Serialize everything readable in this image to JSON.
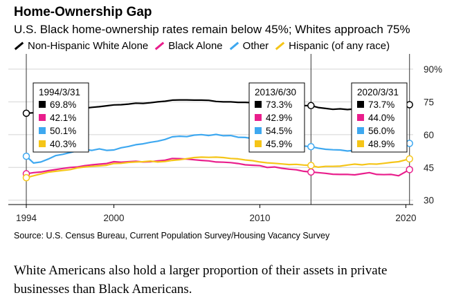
{
  "header": {
    "title": "Home-Ownership Gap",
    "subtitle": "U.S. Black home-ownership rates remain below 45%; Whites approach 75%"
  },
  "source": "Source: U.S. Census Bureau, Current Population Survey/Housing Vacancy Survey",
  "caption": "White Americans also hold a larger proportion of their assets in private businesses than Black Americans.",
  "chart_data": {
    "type": "line",
    "title": "Home-Ownership Gap",
    "subtitle": "U.S. Black home-ownership rates remain below 45%; Whites approach 75%",
    "x_range": [
      1994.0,
      2020.5
    ],
    "y_range": [
      28,
      90
    ],
    "y_ticks": [
      30,
      45,
      60,
      75,
      90
    ],
    "y_tick_labels": [
      "30",
      "45",
      "60",
      "75",
      "90%"
    ],
    "x_ticks": [
      1994,
      2000,
      2010,
      2020
    ],
    "x_tick_labels": [
      "1994",
      "2000",
      "2010",
      "2020"
    ],
    "y_axis_position": "right",
    "legend_position": "top-left",
    "series": [
      {
        "name": "Non-Hispanic White Alone",
        "color": "#000000",
        "points": [
          [
            1994.0,
            69.8
          ],
          [
            1994.5,
            70.0
          ],
          [
            1995.0,
            70.4
          ],
          [
            1995.5,
            70.6
          ],
          [
            1996.0,
            71.3
          ],
          [
            1996.5,
            71.5
          ],
          [
            1997.0,
            71.8
          ],
          [
            1997.5,
            71.9
          ],
          [
            1998.0,
            72.1
          ],
          [
            1998.5,
            72.5
          ],
          [
            1999.0,
            72.8
          ],
          [
            1999.5,
            73.2
          ],
          [
            2000.0,
            73.6
          ],
          [
            2000.5,
            73.7
          ],
          [
            2001.0,
            74.0
          ],
          [
            2001.5,
            74.4
          ],
          [
            2002.0,
            74.3
          ],
          [
            2002.5,
            74.6
          ],
          [
            2003.0,
            75.0
          ],
          [
            2003.5,
            75.3
          ],
          [
            2004.0,
            75.8
          ],
          [
            2004.5,
            75.9
          ],
          [
            2005.0,
            75.9
          ],
          [
            2005.5,
            75.8
          ],
          [
            2006.0,
            75.8
          ],
          [
            2006.5,
            75.7
          ],
          [
            2007.0,
            75.2
          ],
          [
            2007.5,
            75.0
          ],
          [
            2008.0,
            75.0
          ],
          [
            2008.5,
            74.8
          ],
          [
            2009.0,
            74.8
          ],
          [
            2009.5,
            74.6
          ],
          [
            2010.0,
            74.5
          ],
          [
            2010.5,
            74.3
          ],
          [
            2011.0,
            73.8
          ],
          [
            2011.5,
            73.5
          ],
          [
            2012.0,
            73.5
          ],
          [
            2012.5,
            73.4
          ],
          [
            2013.0,
            73.3
          ],
          [
            2013.5,
            73.3
          ],
          [
            2014.0,
            72.4
          ],
          [
            2014.5,
            72.0
          ],
          [
            2015.0,
            71.6
          ],
          [
            2015.5,
            71.8
          ],
          [
            2016.0,
            71.5
          ],
          [
            2016.5,
            71.8
          ],
          [
            2017.0,
            72.1
          ],
          [
            2017.5,
            72.3
          ],
          [
            2018.0,
            72.5
          ],
          [
            2018.5,
            72.8
          ],
          [
            2019.0,
            73.1
          ],
          [
            2019.5,
            73.3
          ],
          [
            2020.25,
            73.7
          ]
        ]
      },
      {
        "name": "Black Alone",
        "color": "#e91e8c",
        "points": [
          [
            1994.0,
            42.1
          ],
          [
            1994.5,
            42.6
          ],
          [
            1995.0,
            42.9
          ],
          [
            1995.5,
            43.5
          ],
          [
            1996.0,
            44.0
          ],
          [
            1996.5,
            44.5
          ],
          [
            1997.0,
            45.0
          ],
          [
            1997.5,
            45.2
          ],
          [
            1998.0,
            45.8
          ],
          [
            1998.5,
            46.2
          ],
          [
            1999.0,
            46.5
          ],
          [
            1999.5,
            46.8
          ],
          [
            2000.0,
            47.6
          ],
          [
            2000.5,
            47.4
          ],
          [
            2001.0,
            47.6
          ],
          [
            2001.5,
            47.8
          ],
          [
            2002.0,
            47.5
          ],
          [
            2002.5,
            47.6
          ],
          [
            2003.0,
            48.0
          ],
          [
            2003.5,
            48.3
          ],
          [
            2004.0,
            49.1
          ],
          [
            2004.5,
            49.0
          ],
          [
            2005.0,
            48.8
          ],
          [
            2005.5,
            48.5
          ],
          [
            2006.0,
            48.2
          ],
          [
            2006.5,
            48.0
          ],
          [
            2007.0,
            47.5
          ],
          [
            2007.5,
            47.4
          ],
          [
            2008.0,
            47.2
          ],
          [
            2008.5,
            46.8
          ],
          [
            2009.0,
            46.2
          ],
          [
            2009.5,
            46.0
          ],
          [
            2010.0,
            45.8
          ],
          [
            2010.5,
            45.0
          ],
          [
            2011.0,
            45.2
          ],
          [
            2011.5,
            44.6
          ],
          [
            2012.0,
            44.2
          ],
          [
            2012.5,
            43.9
          ],
          [
            2013.0,
            43.2
          ],
          [
            2013.5,
            42.9
          ],
          [
            2014.0,
            42.6
          ],
          [
            2014.5,
            42.3
          ],
          [
            2015.0,
            41.9
          ],
          [
            2015.5,
            41.8
          ],
          [
            2016.0,
            41.8
          ],
          [
            2016.5,
            41.6
          ],
          [
            2017.0,
            42.1
          ],
          [
            2017.5,
            42.6
          ],
          [
            2018.0,
            41.8
          ],
          [
            2018.5,
            41.7
          ],
          [
            2019.0,
            41.8
          ],
          [
            2019.5,
            41.2
          ],
          [
            2020.25,
            44.0
          ]
        ]
      },
      {
        "name": "Other",
        "color": "#3ea8f0",
        "points": [
          [
            1994.0,
            50.1
          ],
          [
            1994.5,
            47.0
          ],
          [
            1995.0,
            47.5
          ],
          [
            1995.5,
            48.8
          ],
          [
            1996.0,
            50.4
          ],
          [
            1996.5,
            51.0
          ],
          [
            1997.0,
            51.8
          ],
          [
            1997.5,
            52.6
          ],
          [
            1998.0,
            53.2
          ],
          [
            1998.5,
            52.8
          ],
          [
            1999.0,
            53.5
          ],
          [
            1999.5,
            52.8
          ],
          [
            2000.0,
            53.0
          ],
          [
            2000.5,
            54.0
          ],
          [
            2001.0,
            54.6
          ],
          [
            2001.5,
            55.4
          ],
          [
            2002.0,
            55.8
          ],
          [
            2002.5,
            56.5
          ],
          [
            2003.0,
            57.0
          ],
          [
            2003.5,
            57.8
          ],
          [
            2004.0,
            59.0
          ],
          [
            2004.5,
            59.3
          ],
          [
            2005.0,
            59.1
          ],
          [
            2005.5,
            59.8
          ],
          [
            2006.0,
            60.0
          ],
          [
            2006.5,
            59.6
          ],
          [
            2007.0,
            60.1
          ],
          [
            2007.5,
            59.5
          ],
          [
            2008.0,
            59.6
          ],
          [
            2008.5,
            58.8
          ],
          [
            2009.0,
            58.7
          ],
          [
            2009.5,
            58.2
          ],
          [
            2010.0,
            57.8
          ],
          [
            2010.5,
            57.2
          ],
          [
            2011.0,
            56.5
          ],
          [
            2011.5,
            56.0
          ],
          [
            2012.0,
            55.8
          ],
          [
            2012.5,
            55.0
          ],
          [
            2013.0,
            54.8
          ],
          [
            2013.5,
            54.5
          ],
          [
            2014.0,
            53.8
          ],
          [
            2014.5,
            53.3
          ],
          [
            2015.0,
            53.1
          ],
          [
            2015.5,
            53.0
          ],
          [
            2016.0,
            52.5
          ],
          [
            2016.5,
            52.8
          ],
          [
            2017.0,
            53.6
          ],
          [
            2017.5,
            53.5
          ],
          [
            2018.0,
            53.8
          ],
          [
            2018.5,
            54.2
          ],
          [
            2019.0,
            54.5
          ],
          [
            2019.5,
            55.0
          ],
          [
            2020.25,
            56.0
          ]
        ]
      },
      {
        "name": "Hispanic (of any race)",
        "color": "#f5c518",
        "points": [
          [
            1994.0,
            40.3
          ],
          [
            1994.5,
            41.2
          ],
          [
            1995.0,
            42.0
          ],
          [
            1995.5,
            42.8
          ],
          [
            1996.0,
            43.2
          ],
          [
            1996.5,
            43.6
          ],
          [
            1997.0,
            44.0
          ],
          [
            1997.5,
            44.8
          ],
          [
            1998.0,
            45.2
          ],
          [
            1998.5,
            45.5
          ],
          [
            1999.0,
            45.7
          ],
          [
            1999.5,
            46.0
          ],
          [
            2000.0,
            46.8
          ],
          [
            2000.5,
            46.9
          ],
          [
            2001.0,
            47.3
          ],
          [
            2001.5,
            47.5
          ],
          [
            2002.0,
            47.6
          ],
          [
            2002.5,
            47.9
          ],
          [
            2003.0,
            47.5
          ],
          [
            2003.5,
            47.7
          ],
          [
            2004.0,
            48.2
          ],
          [
            2004.5,
            48.5
          ],
          [
            2005.0,
            49.0
          ],
          [
            2005.5,
            49.5
          ],
          [
            2006.0,
            49.7
          ],
          [
            2006.5,
            49.6
          ],
          [
            2007.0,
            49.7
          ],
          [
            2007.5,
            49.5
          ],
          [
            2008.0,
            49.1
          ],
          [
            2008.5,
            48.9
          ],
          [
            2009.0,
            48.4
          ],
          [
            2009.5,
            48.1
          ],
          [
            2010.0,
            47.5
          ],
          [
            2010.5,
            47.1
          ],
          [
            2011.0,
            46.9
          ],
          [
            2011.5,
            46.6
          ],
          [
            2012.0,
            46.3
          ],
          [
            2012.5,
            46.4
          ],
          [
            2013.0,
            46.1
          ],
          [
            2013.5,
            45.9
          ],
          [
            2014.0,
            45.1
          ],
          [
            2014.5,
            45.5
          ],
          [
            2015.0,
            45.5
          ],
          [
            2015.5,
            45.6
          ],
          [
            2016.0,
            46.1
          ],
          [
            2016.5,
            46.5
          ],
          [
            2017.0,
            46.2
          ],
          [
            2017.5,
            46.6
          ],
          [
            2018.0,
            46.5
          ],
          [
            2018.5,
            46.9
          ],
          [
            2019.0,
            47.3
          ],
          [
            2019.5,
            47.6
          ],
          [
            2020.25,
            48.9
          ]
        ]
      }
    ],
    "markers": [
      {
        "date": "1994/3/31",
        "x": 1994.0,
        "values": [
          "69.8%",
          "42.1%",
          "50.1%",
          "40.3%"
        ]
      },
      {
        "date": "2013/6/30",
        "x": 2013.5,
        "values": [
          "73.3%",
          "42.9%",
          "54.5%",
          "45.9%"
        ]
      },
      {
        "date": "2020/3/31",
        "x": 2020.25,
        "values": [
          "73.7%",
          "44.0%",
          "56.0%",
          "48.9%"
        ]
      }
    ]
  }
}
